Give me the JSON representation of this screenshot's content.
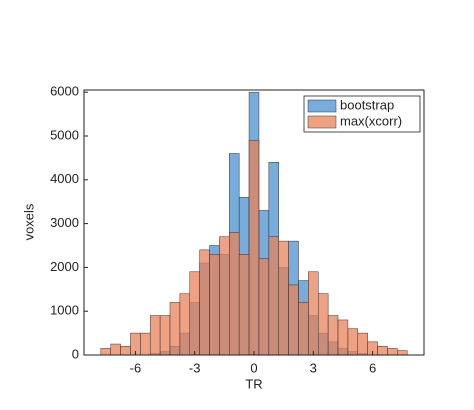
{
  "chart_data": {
    "type": "histogram",
    "xlabel": "TR",
    "ylabel": "voxels",
    "bins": [
      -7.75,
      -7.25,
      -6.75,
      -6.25,
      -5.75,
      -5.25,
      -4.75,
      -4.25,
      -3.75,
      -3.25,
      -2.75,
      -2.25,
      -1.75,
      -1.25,
      -0.75,
      -0.25,
      0.25,
      0.75,
      1.25,
      1.75,
      2.25,
      2.75,
      3.25,
      3.75,
      4.25,
      4.75,
      5.25,
      5.75,
      6.25,
      6.75,
      7.25,
      7.75
    ],
    "series": [
      {
        "name": "bootstrap",
        "color": "#4a90d0",
        "values": [
          0,
          0,
          0,
          0,
          0,
          30,
          80,
          200,
          500,
          1200,
          2100,
          2500,
          2300,
          4600,
          3600,
          6000,
          3300,
          4400,
          2000,
          2600,
          1700,
          900,
          500,
          300,
          150,
          80,
          30,
          0,
          0,
          0,
          0
        ]
      },
      {
        "name": "max(xcorr)",
        "color": "#e8825a",
        "values": [
          150,
          250,
          200,
          500,
          500,
          900,
          900,
          1200,
          1400,
          1900,
          2400,
          2300,
          2700,
          2800,
          2300,
          4900,
          2200,
          2700,
          2600,
          1600,
          1200,
          1900,
          1400,
          900,
          800,
          600,
          500,
          300,
          200,
          150,
          100
        ]
      }
    ],
    "xlim": [
      -8.6,
      8.6
    ],
    "ylim": [
      0,
      6050
    ],
    "xticks": [
      -6,
      -3,
      0,
      3,
      6
    ],
    "yticks": [
      0,
      1000,
      2000,
      3000,
      4000,
      5000,
      6000
    ],
    "legend": "upper right"
  }
}
